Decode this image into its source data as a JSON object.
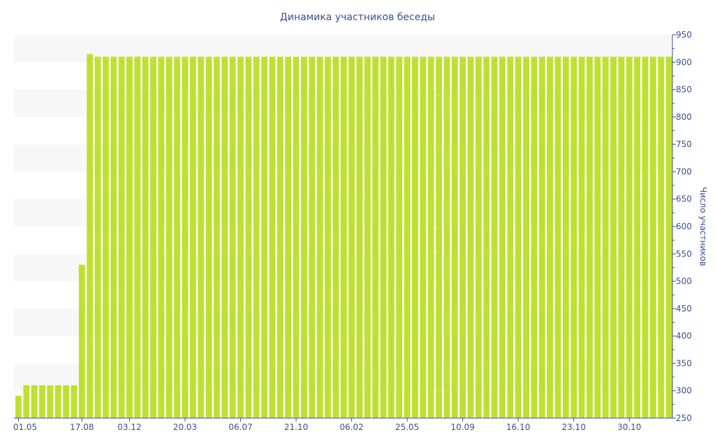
{
  "chart_data": {
    "type": "bar",
    "title": "Динамика участников беседы",
    "ylabel": "Число участников",
    "xlabel": "",
    "ylim": [
      250,
      950
    ],
    "y_axis_side": "right",
    "y_ticks": [
      250,
      300,
      350,
      400,
      450,
      500,
      550,
      600,
      650,
      700,
      750,
      800,
      850,
      900,
      950
    ],
    "grid": "alternating horizontal bands",
    "legend": "none",
    "bar_color": "#c0e031",
    "x_tick_labels": [
      "01.05",
      "17.08",
      "03.12",
      "20.03",
      "06.07",
      "21.10",
      "06.02",
      "25.05",
      "10.09",
      "16.10",
      "23.10",
      "30.10"
    ],
    "x_tick_indices": [
      0,
      8,
      14,
      21,
      28,
      35,
      42,
      49,
      56,
      63,
      70,
      77
    ],
    "values": [
      291,
      310,
      310,
      310,
      310,
      310,
      310,
      310,
      530,
      915,
      910,
      910,
      910,
      910,
      910,
      910,
      910,
      910,
      910,
      910,
      910,
      910,
      910,
      910,
      910,
      910,
      910,
      910,
      910,
      910,
      910,
      910,
      910,
      910,
      910,
      910,
      910,
      910,
      910,
      910,
      910,
      910,
      910,
      910,
      910,
      910,
      910,
      910,
      910,
      910,
      910,
      910,
      910,
      910,
      910,
      910,
      910,
      910,
      910,
      910,
      910,
      910,
      910,
      910,
      910,
      910,
      910,
      910,
      910,
      910,
      910,
      910,
      910,
      910,
      910,
      910,
      910,
      910,
      910,
      910,
      910,
      910,
      910
    ]
  }
}
